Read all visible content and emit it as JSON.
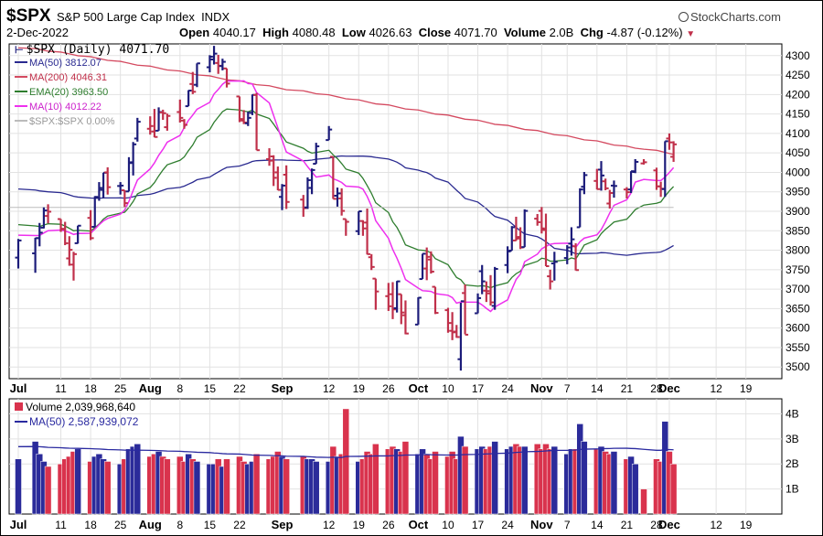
{
  "header": {
    "ticker": "$SPX",
    "full_name": "S&P 500 Large Cap Index",
    "exchange": "INDX",
    "brand": "StockCharts.com",
    "date": "2-Dec-2022",
    "open_label": "Open",
    "open": "4040.17",
    "high_label": "High",
    "high": "4080.48",
    "low_label": "Low",
    "low": "4026.63",
    "close_label": "Close",
    "close": "4071.70",
    "volume_label": "Volume",
    "volume": "2.0B",
    "change_label": "Chg",
    "change": "-4.87 (-0.12%)"
  },
  "colors": {
    "up": "#1c1c7a",
    "down": "#c0304a",
    "ma50": "#2a2a90",
    "ma200": "#d44a60",
    "ema20": "#2e7d2e",
    "ma10": "#ee30ee",
    "ref": "#bbbbbb",
    "volup": "#2b2b9a",
    "voldown": "#d9334d",
    "volma": "#2a2aa0"
  },
  "legend": {
    "price": "$SPX (Daily) 4071.70",
    "ma50": "MA(50) 3812.07",
    "ma200": "MA(200) 4046.31",
    "ema20": "EMA(20) 3963.50",
    "ma10": "MA(10) 4012.22",
    "ref": "$SPX:$SPX 0.00%",
    "volume": "Volume 2,039,968,640",
    "vol_ma50": "MA(50) 2,587,939,072"
  },
  "chart_data": {
    "type": "ohlc",
    "title": "$SPX S&P 500 Large Cap Index INDX",
    "x_labels": [
      {
        "d": "2022-07-01",
        "t": "Jul",
        "b": true
      },
      {
        "d": "2022-07-11",
        "t": "11"
      },
      {
        "d": "2022-07-18",
        "t": "18"
      },
      {
        "d": "2022-07-25",
        "t": "25"
      },
      {
        "d": "2022-08-01",
        "t": "Aug",
        "b": true
      },
      {
        "d": "2022-08-08",
        "t": "8"
      },
      {
        "d": "2022-08-15",
        "t": "15"
      },
      {
        "d": "2022-08-22",
        "t": "22"
      },
      {
        "d": "2022-09-01",
        "t": "Sep",
        "b": true
      },
      {
        "d": "2022-09-12",
        "t": "12"
      },
      {
        "d": "2022-09-19",
        "t": "19"
      },
      {
        "d": "2022-09-26",
        "t": "26"
      },
      {
        "d": "2022-10-03",
        "t": "Oct",
        "b": true
      },
      {
        "d": "2022-10-10",
        "t": "10"
      },
      {
        "d": "2022-10-17",
        "t": "17"
      },
      {
        "d": "2022-10-24",
        "t": "24"
      },
      {
        "d": "2022-11-01",
        "t": "Nov",
        "b": true
      },
      {
        "d": "2022-11-07",
        "t": "7"
      },
      {
        "d": "2022-11-14",
        "t": "14"
      },
      {
        "d": "2022-11-21",
        "t": "21"
      },
      {
        "d": "2022-11-28",
        "t": "28"
      },
      {
        "d": "2022-12-01",
        "t": "Dec",
        "b": true
      },
      {
        "d": "2022-12-12",
        "t": "12"
      },
      {
        "d": "2022-12-19",
        "t": "19"
      }
    ],
    "price_axis": {
      "min": 3470,
      "max": 4330,
      "ticks": [
        3500,
        3550,
        3600,
        3650,
        3700,
        3750,
        3800,
        3850,
        3900,
        3950,
        4000,
        4050,
        4100,
        4150,
        4200,
        4250,
        4300
      ]
    },
    "volume_axis": {
      "min": 0,
      "max": 4.6,
      "ticks": [
        {
          "v": 1,
          "t": "1B"
        },
        {
          "v": 2,
          "t": "2B"
        },
        {
          "v": 3,
          "t": "3B"
        },
        {
          "v": 4,
          "t": "4B"
        }
      ]
    },
    "bars": [
      [
        "2022-07-01",
        3781,
        3829,
        3753,
        3825,
        2.2
      ],
      [
        "2022-07-05",
        3792,
        3832,
        3742,
        3831,
        2.9
      ],
      [
        "2022-07-06",
        3831,
        3870,
        3810,
        3845,
        2.4
      ],
      [
        "2022-07-07",
        3858,
        3910,
        3856,
        3902,
        2.1
      ],
      [
        "2022-07-08",
        3888,
        3918,
        3869,
        3899,
        1.9
      ],
      [
        "2022-07-11",
        3880,
        3880,
        3847,
        3855,
        2.0
      ],
      [
        "2022-07-12",
        3854,
        3873,
        3813,
        3818,
        2.2
      ],
      [
        "2022-07-13",
        3779,
        3836,
        3760,
        3801,
        2.3
      ],
      [
        "2022-07-14",
        3763,
        3796,
        3722,
        3790,
        2.5
      ],
      [
        "2022-07-15",
        3818,
        3863,
        3817,
        3863,
        2.6
      ],
      [
        "2022-07-18",
        3883,
        3903,
        3826,
        3831,
        2.1
      ],
      [
        "2022-07-19",
        3860,
        3939,
        3860,
        3937,
        2.3
      ],
      [
        "2022-07-20",
        3935,
        3975,
        3927,
        3960,
        2.4
      ],
      [
        "2022-07-21",
        3955,
        3999,
        3933,
        3999,
        2.2
      ],
      [
        "2022-07-22",
        4000,
        4013,
        3943,
        3962,
        2.1
      ],
      [
        "2022-07-25",
        3965,
        3975,
        3943,
        3966,
        2.0
      ],
      [
        "2022-07-26",
        3954,
        3954,
        3911,
        3921,
        2.2
      ],
      [
        "2022-07-27",
        3951,
        4039,
        3951,
        4024,
        2.6
      ],
      [
        "2022-07-28",
        4026,
        4078,
        3992,
        4072,
        2.7
      ],
      [
        "2022-07-29",
        4087,
        4140,
        4079,
        4130,
        2.8
      ],
      [
        "2022-08-01",
        4112,
        4144,
        4097,
        4119,
        2.3
      ],
      [
        "2022-08-02",
        4105,
        4163,
        4090,
        4091,
        2.4
      ],
      [
        "2022-08-03",
        4107,
        4167,
        4107,
        4155,
        2.5
      ],
      [
        "2022-08-04",
        4154,
        4161,
        4135,
        4152,
        2.3
      ],
      [
        "2022-08-05",
        4116,
        4151,
        4107,
        4145,
        2.2
      ],
      [
        "2022-08-08",
        4155,
        4187,
        4128,
        4140,
        2.3
      ],
      [
        "2022-08-09",
        4133,
        4137,
        4112,
        4122,
        2.1
      ],
      [
        "2022-08-10",
        4170,
        4211,
        4170,
        4210,
        2.4
      ],
      [
        "2022-08-11",
        4227,
        4258,
        4201,
        4207,
        2.2
      ],
      [
        "2022-08-12",
        4225,
        4280,
        4219,
        4280,
        2.1
      ],
      [
        "2022-08-15",
        4270,
        4301,
        4257,
        4297,
        2.0
      ],
      [
        "2022-08-16",
        4290,
        4325,
        4277,
        4305,
        2.0
      ],
      [
        "2022-08-17",
        4281,
        4302,
        4253,
        4274,
        2.2
      ],
      [
        "2022-08-18",
        4273,
        4292,
        4262,
        4284,
        1.9
      ],
      [
        "2022-08-19",
        4267,
        4267,
        4218,
        4228,
        2.2
      ],
      [
        "2022-08-22",
        4195,
        4195,
        4129,
        4137,
        2.3
      ],
      [
        "2022-08-23",
        4133,
        4160,
        4124,
        4128,
        2.1
      ],
      [
        "2022-08-24",
        4126,
        4156,
        4119,
        4140,
        2.0
      ],
      [
        "2022-08-25",
        4153,
        4200,
        4147,
        4199,
        2.1
      ],
      [
        "2022-08-26",
        4199,
        4204,
        4057,
        4057,
        2.4
      ],
      [
        "2022-08-29",
        4034,
        4062,
        4017,
        4030,
        2.2
      ],
      [
        "2022-08-30",
        4041,
        4044,
        3965,
        3986,
        2.3
      ],
      [
        "2022-08-31",
        4000,
        4015,
        3954,
        3955,
        2.5
      ],
      [
        "2022-09-01",
        3937,
        3970,
        3903,
        3966,
        2.3
      ],
      [
        "2022-09-02",
        3994,
        4018,
        3906,
        3924,
        2.2
      ],
      [
        "2022-09-06",
        3930,
        3942,
        3886,
        3908,
        2.3
      ],
      [
        "2022-09-07",
        3910,
        3987,
        3906,
        3980,
        2.2
      ],
      [
        "2022-09-08",
        3960,
        4010,
        3944,
        4006,
        2.2
      ],
      [
        "2022-09-09",
        4022,
        4076,
        4022,
        4067,
        2.1
      ],
      [
        "2022-09-12",
        4083,
        4119,
        4083,
        4110,
        2.1
      ],
      [
        "2022-09-13",
        4040,
        4040,
        3932,
        3932,
        2.7
      ],
      [
        "2022-09-14",
        3940,
        3961,
        3912,
        3946,
        2.3
      ],
      [
        "2022-09-15",
        3933,
        3959,
        3889,
        3901,
        2.4
      ],
      [
        "2022-09-16",
        3880,
        3880,
        3837,
        3873,
        4.2
      ],
      [
        "2022-09-19",
        3849,
        3900,
        3839,
        3900,
        2.1
      ],
      [
        "2022-09-20",
        3875,
        3877,
        3837,
        3856,
        2.2
      ],
      [
        "2022-09-21",
        3871,
        3907,
        3789,
        3790,
        2.5
      ],
      [
        "2022-09-22",
        3782,
        3790,
        3749,
        3757,
        2.4
      ],
      [
        "2022-09-23",
        3727,
        3727,
        3647,
        3694,
        2.8
      ],
      [
        "2022-09-26",
        3682,
        3716,
        3644,
        3656,
        2.6
      ],
      [
        "2022-09-27",
        3687,
        3718,
        3623,
        3648,
        2.7
      ],
      [
        "2022-09-28",
        3651,
        3721,
        3640,
        3720,
        2.6
      ],
      [
        "2022-09-29",
        3687,
        3687,
        3610,
        3640,
        2.5
      ],
      [
        "2022-09-30",
        3633,
        3671,
        3584,
        3586,
        2.9
      ],
      [
        "2022-10-03",
        3609,
        3679,
        3609,
        3678,
        2.4
      ],
      [
        "2022-10-04",
        3726,
        3791,
        3726,
        3791,
        2.6
      ],
      [
        "2022-10-05",
        3753,
        3807,
        3723,
        3783,
        2.4
      ],
      [
        "2022-10-06",
        3776,
        3797,
        3740,
        3745,
        2.2
      ],
      [
        "2022-10-07",
        3706,
        3706,
        3636,
        3639,
        2.5
      ],
      [
        "2022-10-10",
        3646,
        3652,
        3588,
        3613,
        2.3
      ],
      [
        "2022-10-11",
        3593,
        3641,
        3569,
        3589,
        2.5
      ],
      [
        "2022-10-12",
        3591,
        3608,
        3575,
        3577,
        2.2
      ],
      [
        "2022-10-13",
        3520,
        3665,
        3491,
        3669,
        3.1
      ],
      [
        "2022-10-14",
        3690,
        3712,
        3584,
        3583,
        2.7
      ],
      [
        "2022-10-17",
        3638,
        3689,
        3638,
        3677,
        2.6
      ],
      [
        "2022-10-18",
        3746,
        3762,
        3687,
        3720,
        2.7
      ],
      [
        "2022-10-19",
        3696,
        3720,
        3667,
        3695,
        2.6
      ],
      [
        "2022-10-20",
        3689,
        3736,
        3658,
        3666,
        2.7
      ],
      [
        "2022-10-21",
        3657,
        3757,
        3647,
        3752,
        2.9
      ],
      [
        "2022-10-24",
        3762,
        3810,
        3741,
        3797,
        2.6
      ],
      [
        "2022-10-25",
        3799,
        3862,
        3799,
        3859,
        2.7
      ],
      [
        "2022-10-26",
        3825,
        3886,
        3824,
        3830,
        2.8
      ],
      [
        "2022-10-27",
        3834,
        3859,
        3803,
        3807,
        2.7
      ],
      [
        "2022-10-28",
        3808,
        3905,
        3808,
        3901,
        2.7
      ],
      [
        "2022-10-31",
        3881,
        3893,
        3863,
        3872,
        2.8
      ],
      [
        "2022-11-01",
        3901,
        3911,
        3843,
        3856,
        2.6
      ],
      [
        "2022-11-02",
        3852,
        3894,
        3759,
        3759,
        2.8
      ],
      [
        "2022-11-03",
        3733,
        3750,
        3699,
        3720,
        2.6
      ],
      [
        "2022-11-04",
        3766,
        3796,
        3722,
        3770,
        2.7
      ],
      [
        "2022-11-07",
        3780,
        3813,
        3764,
        3807,
        2.4
      ],
      [
        "2022-11-08",
        3817,
        3859,
        3786,
        3828,
        2.6
      ],
      [
        "2022-11-09",
        3810,
        3818,
        3748,
        3749,
        2.6
      ],
      [
        "2022-11-10",
        3859,
        3959,
        3859,
        3956,
        3.6
      ],
      [
        "2022-11-11",
        3963,
        4001,
        3944,
        3993,
        2.9
      ],
      [
        "2022-11-14",
        3978,
        4009,
        3956,
        3957,
        2.6
      ],
      [
        "2022-11-15",
        4007,
        4029,
        3953,
        3992,
        2.7
      ],
      [
        "2022-11-16",
        3977,
        3984,
        3954,
        3959,
        2.5
      ],
      [
        "2022-11-17",
        3920,
        3955,
        3907,
        3947,
        2.4
      ],
      [
        "2022-11-18",
        3966,
        3979,
        3935,
        3965,
        2.5
      ],
      [
        "2022-11-21",
        3956,
        3962,
        3933,
        3949,
        2.2
      ],
      [
        "2022-11-22",
        3956,
        4003,
        3947,
        4003,
        2.3
      ],
      [
        "2022-11-23",
        4001,
        4034,
        3998,
        4027,
        2.0
      ],
      [
        "2022-11-25",
        4023,
        4034,
        4020,
        4026,
        1.0
      ],
      [
        "2022-11-28",
        4005,
        4012,
        3955,
        3964,
        2.2
      ],
      [
        "2022-11-29",
        3964,
        3976,
        3937,
        3958,
        2.1
      ],
      [
        "2022-11-30",
        3957,
        4080,
        3937,
        4080,
        3.7
      ],
      [
        "2022-12-01",
        4087,
        4100,
        4058,
        4077,
        2.5
      ],
      [
        "2022-12-02",
        4040,
        4080,
        4027,
        4072,
        2.0
      ]
    ]
  }
}
